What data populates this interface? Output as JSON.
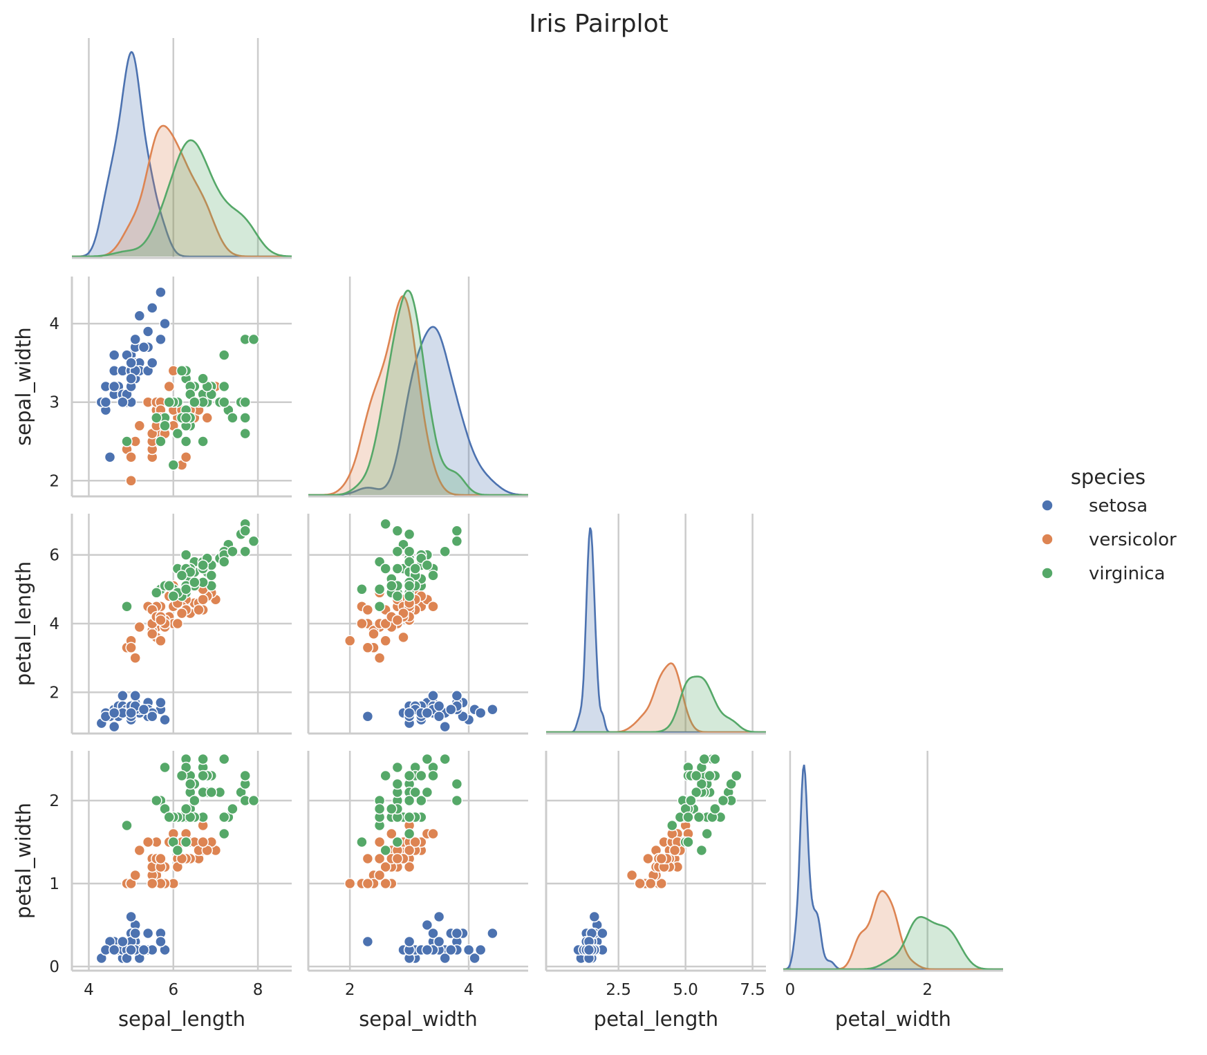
{
  "chart_data": {
    "type": "scatter",
    "subtype": "pairplot-corner",
    "title": "Iris Pairplot",
    "variables": [
      "sepal_length",
      "sepal_width",
      "petal_length",
      "petal_width"
    ],
    "diagonal": "kde",
    "grid": true,
    "axes": {
      "sepal_length": {
        "range": [
          3.6,
          8.8
        ],
        "ticks": [
          4,
          6,
          8
        ],
        "tick_labels": [
          "4",
          "6",
          "8"
        ]
      },
      "sepal_width": {
        "range": [
          1.8,
          4.6
        ],
        "ticks": [
          2,
          3,
          4
        ],
        "tick_labels": [
          "2",
          "3",
          "4"
        ]
      },
      "petal_length": {
        "range": [
          0.8,
          7.2
        ],
        "ticks": [
          2,
          4,
          6
        ],
        "tick_labels": [
          "2",
          "4",
          "6"
        ]
      },
      "petal_width": {
        "range": [
          -0.05,
          2.6
        ],
        "ticks": [
          0,
          1,
          2
        ],
        "tick_labels": [
          "0",
          "1",
          "2"
        ]
      }
    },
    "x_ticks_bottom": {
      "sepal_length": {
        "range": [
          3.6,
          8.8
        ],
        "ticks": [
          4,
          6,
          8
        ],
        "tick_labels": [
          "4",
          "6",
          "8"
        ]
      },
      "sepal_width": {
        "range": [
          1.3,
          5.0
        ],
        "ticks": [
          2,
          4
        ],
        "tick_labels": [
          "2",
          "4"
        ]
      },
      "petal_length": {
        "range": [
          -0.2,
          8.0
        ],
        "ticks": [
          2.5,
          5.0,
          7.5
        ],
        "tick_labels": [
          "2.5",
          "5.0",
          "7.5"
        ]
      },
      "petal_width": {
        "range": [
          -0.1,
          3.1
        ],
        "ticks": [
          0,
          2
        ],
        "tick_labels": [
          "0",
          "2"
        ]
      }
    },
    "legend": {
      "title": "species",
      "placement": "right",
      "entries": [
        {
          "label": "setosa",
          "color": "#4c72b0"
        },
        {
          "label": "versicolor",
          "color": "#dd8452"
        },
        {
          "label": "virginica",
          "color": "#55a868"
        }
      ]
    },
    "series": [
      {
        "name": "setosa",
        "color": "#4c72b0",
        "points": [
          [
            5.1,
            3.5,
            1.4,
            0.2
          ],
          [
            4.9,
            3.0,
            1.4,
            0.2
          ],
          [
            4.7,
            3.2,
            1.3,
            0.2
          ],
          [
            4.6,
            3.1,
            1.5,
            0.2
          ],
          [
            5.0,
            3.6,
            1.4,
            0.2
          ],
          [
            5.4,
            3.9,
            1.7,
            0.4
          ],
          [
            4.6,
            3.4,
            1.4,
            0.3
          ],
          [
            5.0,
            3.4,
            1.5,
            0.2
          ],
          [
            4.4,
            2.9,
            1.4,
            0.2
          ],
          [
            4.9,
            3.1,
            1.5,
            0.1
          ],
          [
            5.4,
            3.7,
            1.5,
            0.2
          ],
          [
            4.8,
            3.4,
            1.6,
            0.2
          ],
          [
            4.8,
            3.0,
            1.4,
            0.1
          ],
          [
            4.3,
            3.0,
            1.1,
            0.1
          ],
          [
            5.8,
            4.0,
            1.2,
            0.2
          ],
          [
            5.7,
            4.4,
            1.5,
            0.4
          ],
          [
            5.4,
            3.9,
            1.3,
            0.4
          ],
          [
            5.1,
            3.5,
            1.4,
            0.3
          ],
          [
            5.7,
            3.8,
            1.7,
            0.3
          ],
          [
            5.1,
            3.8,
            1.5,
            0.3
          ],
          [
            5.4,
            3.4,
            1.7,
            0.2
          ],
          [
            5.1,
            3.7,
            1.5,
            0.4
          ],
          [
            4.6,
            3.6,
            1.0,
            0.2
          ],
          [
            5.1,
            3.3,
            1.7,
            0.5
          ],
          [
            4.8,
            3.4,
            1.9,
            0.2
          ],
          [
            5.0,
            3.0,
            1.6,
            0.2
          ],
          [
            5.0,
            3.4,
            1.6,
            0.4
          ],
          [
            5.2,
            3.5,
            1.5,
            0.2
          ],
          [
            5.2,
            3.4,
            1.4,
            0.2
          ],
          [
            4.7,
            3.2,
            1.6,
            0.2
          ],
          [
            4.8,
            3.1,
            1.6,
            0.2
          ],
          [
            5.4,
            3.4,
            1.5,
            0.4
          ],
          [
            5.2,
            4.1,
            1.5,
            0.1
          ],
          [
            5.5,
            4.2,
            1.4,
            0.2
          ],
          [
            4.9,
            3.1,
            1.5,
            0.2
          ],
          [
            5.0,
            3.2,
            1.2,
            0.2
          ],
          [
            5.5,
            3.5,
            1.3,
            0.2
          ],
          [
            4.9,
            3.6,
            1.4,
            0.1
          ],
          [
            4.4,
            3.0,
            1.3,
            0.2
          ],
          [
            5.1,
            3.4,
            1.5,
            0.2
          ],
          [
            5.0,
            3.5,
            1.3,
            0.3
          ],
          [
            4.5,
            2.3,
            1.3,
            0.3
          ],
          [
            4.4,
            3.2,
            1.3,
            0.2
          ],
          [
            5.0,
            3.5,
            1.6,
            0.6
          ],
          [
            5.1,
            3.8,
            1.9,
            0.4
          ],
          [
            4.8,
            3.0,
            1.4,
            0.3
          ],
          [
            5.1,
            3.8,
            1.6,
            0.2
          ],
          [
            4.6,
            3.2,
            1.4,
            0.2
          ],
          [
            5.3,
            3.7,
            1.5,
            0.2
          ],
          [
            5.0,
            3.3,
            1.4,
            0.2
          ]
        ]
      },
      {
        "name": "versicolor",
        "color": "#dd8452",
        "points": [
          [
            7.0,
            3.2,
            4.7,
            1.4
          ],
          [
            6.4,
            3.2,
            4.5,
            1.5
          ],
          [
            6.9,
            3.1,
            4.9,
            1.5
          ],
          [
            5.5,
            2.3,
            4.0,
            1.3
          ],
          [
            6.5,
            2.8,
            4.6,
            1.5
          ],
          [
            5.7,
            2.8,
            4.5,
            1.3
          ],
          [
            6.3,
            3.3,
            4.7,
            1.6
          ],
          [
            4.9,
            2.4,
            3.3,
            1.0
          ],
          [
            6.6,
            2.9,
            4.6,
            1.3
          ],
          [
            5.2,
            2.7,
            3.9,
            1.4
          ],
          [
            5.0,
            2.0,
            3.5,
            1.0
          ],
          [
            5.9,
            3.0,
            4.2,
            1.5
          ],
          [
            6.0,
            2.2,
            4.0,
            1.0
          ],
          [
            6.1,
            2.9,
            4.7,
            1.4
          ],
          [
            5.6,
            2.9,
            3.6,
            1.3
          ],
          [
            6.7,
            3.1,
            4.4,
            1.4
          ],
          [
            5.6,
            3.0,
            4.5,
            1.5
          ],
          [
            5.8,
            2.7,
            4.1,
            1.0
          ],
          [
            6.2,
            2.2,
            4.5,
            1.5
          ],
          [
            5.6,
            2.5,
            3.9,
            1.1
          ],
          [
            5.9,
            3.2,
            4.8,
            1.8
          ],
          [
            6.1,
            2.8,
            4.0,
            1.3
          ],
          [
            6.3,
            2.5,
            4.9,
            1.5
          ],
          [
            6.1,
            2.8,
            4.7,
            1.2
          ],
          [
            6.4,
            2.9,
            4.3,
            1.3
          ],
          [
            6.6,
            3.0,
            4.4,
            1.4
          ],
          [
            6.8,
            2.8,
            4.8,
            1.4
          ],
          [
            6.7,
            3.0,
            5.0,
            1.7
          ],
          [
            6.0,
            2.9,
            4.5,
            1.5
          ],
          [
            5.7,
            2.6,
            3.5,
            1.0
          ],
          [
            5.5,
            2.4,
            3.8,
            1.1
          ],
          [
            5.5,
            2.4,
            3.7,
            1.0
          ],
          [
            5.8,
            2.7,
            3.9,
            1.2
          ],
          [
            6.0,
            2.7,
            5.1,
            1.6
          ],
          [
            5.4,
            3.0,
            4.5,
            1.5
          ],
          [
            6.0,
            3.4,
            4.5,
            1.6
          ],
          [
            6.7,
            3.1,
            4.7,
            1.5
          ],
          [
            6.3,
            2.3,
            4.4,
            1.3
          ],
          [
            5.6,
            3.0,
            4.1,
            1.3
          ],
          [
            5.5,
            2.5,
            4.0,
            1.3
          ],
          [
            5.5,
            2.6,
            4.4,
            1.2
          ],
          [
            6.1,
            3.0,
            4.6,
            1.4
          ],
          [
            5.8,
            2.6,
            4.0,
            1.2
          ],
          [
            5.0,
            2.3,
            3.3,
            1.0
          ],
          [
            5.6,
            2.7,
            4.2,
            1.3
          ],
          [
            5.7,
            3.0,
            4.2,
            1.2
          ],
          [
            5.7,
            2.9,
            4.2,
            1.3
          ],
          [
            6.2,
            2.9,
            4.3,
            1.3
          ],
          [
            5.1,
            2.5,
            3.0,
            1.1
          ],
          [
            5.7,
            2.8,
            4.1,
            1.3
          ]
        ]
      },
      {
        "name": "virginica",
        "color": "#55a868",
        "points": [
          [
            6.3,
            3.3,
            6.0,
            2.5
          ],
          [
            5.8,
            2.7,
            5.1,
            1.9
          ],
          [
            7.1,
            3.0,
            5.9,
            2.1
          ],
          [
            6.3,
            2.9,
            5.6,
            1.8
          ],
          [
            6.5,
            3.0,
            5.8,
            2.2
          ],
          [
            7.6,
            3.0,
            6.6,
            2.1
          ],
          [
            4.9,
            2.5,
            4.5,
            1.7
          ],
          [
            7.3,
            2.9,
            6.3,
            1.8
          ],
          [
            6.7,
            2.5,
            5.8,
            1.8
          ],
          [
            7.2,
            3.6,
            6.1,
            2.5
          ],
          [
            6.5,
            3.2,
            5.1,
            2.0
          ],
          [
            6.4,
            2.7,
            5.3,
            1.9
          ],
          [
            6.8,
            3.0,
            5.5,
            2.1
          ],
          [
            5.7,
            2.5,
            5.0,
            2.0
          ],
          [
            5.8,
            2.8,
            5.1,
            2.4
          ],
          [
            6.4,
            3.2,
            5.3,
            2.3
          ],
          [
            6.5,
            3.0,
            5.5,
            1.8
          ],
          [
            7.7,
            3.8,
            6.7,
            2.2
          ],
          [
            7.7,
            2.6,
            6.9,
            2.3
          ],
          [
            6.0,
            2.2,
            5.0,
            1.5
          ],
          [
            6.9,
            3.2,
            5.7,
            2.3
          ],
          [
            5.6,
            2.8,
            4.9,
            2.0
          ],
          [
            7.7,
            2.8,
            6.7,
            2.0
          ],
          [
            6.3,
            2.7,
            4.9,
            1.8
          ],
          [
            6.7,
            3.3,
            5.7,
            2.1
          ],
          [
            7.2,
            3.2,
            6.0,
            1.8
          ],
          [
            6.2,
            2.8,
            4.8,
            1.8
          ],
          [
            6.1,
            3.0,
            4.9,
            1.8
          ],
          [
            6.4,
            2.8,
            5.6,
            2.1
          ],
          [
            7.2,
            3.0,
            5.8,
            1.6
          ],
          [
            7.4,
            2.8,
            6.1,
            1.9
          ],
          [
            7.9,
            3.8,
            6.4,
            2.0
          ],
          [
            6.4,
            2.8,
            5.6,
            2.2
          ],
          [
            6.3,
            2.8,
            5.1,
            1.5
          ],
          [
            6.1,
            2.6,
            5.6,
            1.4
          ],
          [
            7.7,
            3.0,
            6.1,
            2.3
          ],
          [
            6.3,
            3.4,
            5.6,
            2.4
          ],
          [
            6.4,
            3.1,
            5.5,
            1.8
          ],
          [
            6.0,
            3.0,
            4.8,
            1.8
          ],
          [
            6.9,
            3.1,
            5.4,
            2.1
          ],
          [
            6.7,
            3.1,
            5.6,
            2.4
          ],
          [
            6.9,
            3.1,
            5.1,
            2.3
          ],
          [
            5.8,
            2.7,
            5.1,
            1.9
          ],
          [
            6.8,
            3.2,
            5.9,
            2.3
          ],
          [
            6.7,
            3.3,
            5.7,
            2.5
          ],
          [
            6.7,
            3.0,
            5.2,
            2.3
          ],
          [
            6.3,
            2.5,
            5.0,
            1.9
          ],
          [
            6.5,
            3.0,
            5.2,
            2.0
          ],
          [
            6.2,
            3.4,
            5.4,
            2.3
          ],
          [
            5.9,
            3.0,
            5.1,
            1.8
          ]
        ]
      }
    ]
  }
}
